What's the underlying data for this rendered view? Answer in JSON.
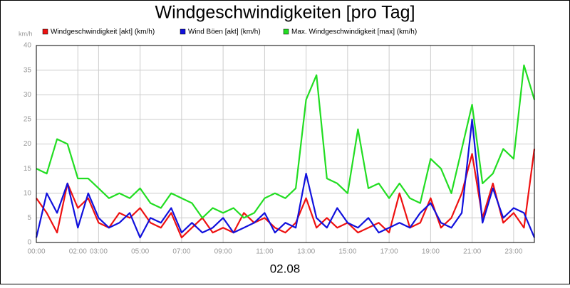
{
  "chart_data": {
    "type": "line",
    "title": "Windgeschwindigkeiten [pro Tag]",
    "y_label": "km/h",
    "x_label": "02.08",
    "xlim": [
      0,
      24
    ],
    "xticks": [
      {
        "value": 0,
        "label": "00:00"
      },
      {
        "value": 2,
        "label": "02:00"
      },
      {
        "value": 3,
        "label": "03:00"
      },
      {
        "value": 5,
        "label": "05:00"
      },
      {
        "value": 7,
        "label": "07:00"
      },
      {
        "value": 9,
        "label": "09:00"
      },
      {
        "value": 11,
        "label": "11:00"
      },
      {
        "value": 13,
        "label": "13:00"
      },
      {
        "value": 15,
        "label": "15:00"
      },
      {
        "value": 17,
        "label": "17:00"
      },
      {
        "value": 19,
        "label": "19:00"
      },
      {
        "value": 21,
        "label": "21:00"
      },
      {
        "value": 23,
        "label": "23:00"
      }
    ],
    "ylim": [
      0,
      40
    ],
    "yticks": [
      0,
      5,
      10,
      15,
      20,
      25,
      30,
      35,
      40
    ],
    "grid": true,
    "x": [
      0,
      0.5,
      1,
      1.5,
      2,
      2.5,
      3,
      3.5,
      4,
      4.5,
      5,
      5.5,
      6,
      6.5,
      7,
      7.5,
      8,
      8.5,
      9,
      9.5,
      10,
      10.5,
      11,
      11.5,
      12,
      12.5,
      13,
      13.5,
      14,
      14.5,
      15,
      15.5,
      16,
      16.5,
      17,
      17.5,
      18,
      18.5,
      19,
      19.5,
      20,
      20.5,
      21,
      21.5,
      22,
      22.5,
      23,
      23.5,
      24
    ],
    "series": [
      {
        "name": "Windgeschwindigkeit [akt] (km/h)",
        "color": "#ee1111",
        "values": [
          9,
          6,
          2,
          12,
          7,
          9,
          4,
          3,
          6,
          5,
          7,
          4,
          3,
          6,
          1,
          3,
          5,
          2,
          3,
          2,
          6,
          4,
          5,
          3,
          2,
          4,
          9,
          3,
          5,
          3,
          4,
          2,
          3,
          4,
          2,
          10,
          3,
          4,
          9,
          3,
          5,
          10,
          18,
          5,
          12,
          4,
          6,
          3,
          19
        ]
      },
      {
        "name": "Wind Böen [akt] (km/h)",
        "color": "#1111dd",
        "values": [
          1,
          10,
          6,
          12,
          3,
          10,
          5,
          3,
          4,
          6,
          1,
          5,
          4,
          7,
          2,
          4,
          2,
          3,
          5,
          2,
          3,
          4,
          6,
          2,
          4,
          3,
          14,
          5,
          3,
          7,
          4,
          3,
          5,
          2,
          3,
          4,
          3,
          6,
          8,
          4,
          3,
          6,
          25,
          4,
          11,
          5,
          7,
          6,
          1
        ]
      },
      {
        "name": "Max. Windgeschwindigkeit [max] (km/h)",
        "color": "#22dd22",
        "values": [
          15,
          14,
          21,
          20,
          13,
          13,
          11,
          9,
          10,
          9,
          11,
          8,
          7,
          10,
          9,
          8,
          5,
          7,
          6,
          7,
          5,
          6,
          9,
          10,
          9,
          11,
          29,
          34,
          13,
          12,
          10,
          23,
          11,
          12,
          9,
          12,
          9,
          8,
          17,
          15,
          10,
          19,
          28,
          12,
          14,
          19,
          17,
          36,
          29
        ]
      }
    ]
  }
}
